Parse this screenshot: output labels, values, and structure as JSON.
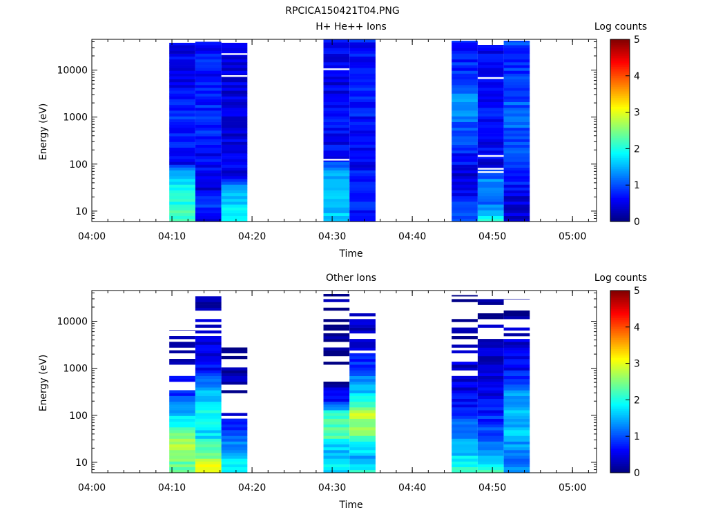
{
  "figure_title": "RPCICA150421T04.PNG",
  "chart_data": [
    {
      "type": "heatmap",
      "title": "H+ He++ Ions",
      "xlabel": "Time",
      "ylabel": "Energy (eV)",
      "colorbar_label": "Log counts",
      "colorbar_ticks": [
        "0",
        "1",
        "2",
        "3",
        "4",
        "5"
      ],
      "colorbar_range": [
        0,
        5
      ],
      "x_ticks": [
        "04:00",
        "04:10",
        "04:20",
        "04:30",
        "04:40",
        "04:50",
        "05:00"
      ],
      "y_ticks": [
        "10",
        "100",
        "1000",
        "10000"
      ],
      "y_scale": "log",
      "ylim": [
        6,
        45000
      ],
      "xlim": [
        "04:00",
        "05:03"
      ],
      "columns": [
        {
          "start": "04:09:40",
          "end": "04:12:55",
          "emin": 6,
          "emax": 38000,
          "profile": [
            [
              6,
              2.2
            ],
            [
              14,
              2.0
            ],
            [
              30,
              1.9
            ],
            [
              60,
              1.6
            ],
            [
              100,
              0.6
            ],
            [
              1000,
              0.8
            ],
            [
              10000,
              0.5
            ],
            [
              38000,
              0.6
            ]
          ],
          "gaps": []
        },
        {
          "start": "04:12:55",
          "end": "04:16:10",
          "emin": 6,
          "emax": 40000,
          "profile": [
            [
              6,
              0.6
            ],
            [
              14,
              0.9
            ],
            [
              30,
              0.5
            ],
            [
              100,
              0.6
            ],
            [
              1000,
              0.8
            ],
            [
              10000,
              0.7
            ],
            [
              40000,
              0.7
            ]
          ],
          "gaps": []
        },
        {
          "start": "04:16:10",
          "end": "04:19:25",
          "emin": 6,
          "emax": 38000,
          "profile": [
            [
              6,
              1.8
            ],
            [
              14,
              1.7
            ],
            [
              30,
              1.5
            ],
            [
              60,
              0.5
            ],
            [
              1000,
              0.5
            ],
            [
              10000,
              0.4
            ],
            [
              38000,
              0.5
            ]
          ],
          "gaps": [
            7500,
            22000
          ]
        },
        {
          "start": "04:28:55",
          "end": "04:32:10",
          "emin": 6,
          "emax": 45000,
          "profile": [
            [
              6,
              1.7
            ],
            [
              14,
              1.6
            ],
            [
              40,
              1.6
            ],
            [
              80,
              1.2
            ],
            [
              150,
              0.6
            ],
            [
              1000,
              0.6
            ],
            [
              10000,
              0.5
            ],
            [
              45000,
              0.6
            ]
          ],
          "gaps": [
            10500,
            125
          ]
        },
        {
          "start": "04:32:10",
          "end": "04:35:25",
          "emin": 6,
          "emax": 45000,
          "profile": [
            [
              6,
              0.5
            ],
            [
              14,
              0.8
            ],
            [
              30,
              0.9
            ],
            [
              100,
              0.6
            ],
            [
              1000,
              0.7
            ],
            [
              10000,
              0.7
            ],
            [
              45000,
              0.7
            ]
          ],
          "gaps": []
        },
        {
          "start": "04:44:55",
          "end": "04:48:10",
          "emin": 6,
          "emax": 42000,
          "profile": [
            [
              6,
              0.9
            ],
            [
              14,
              0.8
            ],
            [
              40,
              0.4
            ],
            [
              100,
              0.6
            ],
            [
              1000,
              1.2
            ],
            [
              2000,
              1.5
            ],
            [
              10000,
              0.8
            ],
            [
              42000,
              0.8
            ]
          ],
          "gaps": []
        },
        {
          "start": "04:48:10",
          "end": "04:51:25",
          "emin": 6,
          "emax": 36000,
          "profile": [
            [
              6,
              2.0
            ],
            [
              14,
              1.2
            ],
            [
              40,
              1.4
            ],
            [
              100,
              0.5
            ],
            [
              1000,
              0.7
            ],
            [
              10000,
              0.5
            ],
            [
              36000,
              0.6
            ]
          ],
          "gaps": [
            6800,
            150,
            80,
            68,
            36000
          ]
        },
        {
          "start": "04:51:25",
          "end": "04:54:40",
          "emin": 6,
          "emax": 42000,
          "profile": [
            [
              6,
              0.4
            ],
            [
              20,
              0.5
            ],
            [
              60,
              0.8
            ],
            [
              300,
              1.0
            ],
            [
              1000,
              1.1
            ],
            [
              10000,
              0.9
            ],
            [
              42000,
              0.9
            ]
          ],
          "gaps": []
        }
      ]
    },
    {
      "type": "heatmap",
      "title": "Other Ions",
      "xlabel": "Time",
      "ylabel": "Energy (eV)",
      "colorbar_label": "Log counts",
      "colorbar_ticks": [
        "0",
        "1",
        "2",
        "3",
        "4",
        "5"
      ],
      "colorbar_range": [
        0,
        5
      ],
      "x_ticks": [
        "04:00",
        "04:10",
        "04:20",
        "04:30",
        "04:40",
        "04:50",
        "05:00"
      ],
      "y_ticks": [
        "10",
        "100",
        "1000",
        "10000"
      ],
      "y_scale": "log",
      "ylim": [
        6,
        45000
      ],
      "xlim": [
        "04:00",
        "05:03"
      ],
      "columns": [
        {
          "start": "04:09:40",
          "end": "04:12:55",
          "emin": 6,
          "emax": 6500,
          "profile": [
            [
              6,
              2.2
            ],
            [
              15,
              2.6
            ],
            [
              30,
              2.7
            ],
            [
              60,
              2.1
            ],
            [
              150,
              1.3
            ],
            [
              400,
              0.6
            ],
            [
              6500,
              0.1
            ]
          ],
          "sparse_above": 300
        },
        {
          "start": "04:12:55",
          "end": "04:16:10",
          "emin": 6,
          "emax": 38000,
          "profile": [
            [
              6,
              3.2
            ],
            [
              15,
              2.4
            ],
            [
              40,
              1.7
            ],
            [
              100,
              1.9
            ],
            [
              300,
              1.5
            ],
            [
              1000,
              0.6
            ],
            [
              38000,
              0.1
            ]
          ],
          "sparse_above": 4000
        },
        {
          "start": "04:16:10",
          "end": "04:19:25",
          "emin": 6,
          "emax": 2800,
          "profile": [
            [
              6,
              1.8
            ],
            [
              15,
              1.6
            ],
            [
              40,
              1.0
            ],
            [
              100,
              0.4
            ],
            [
              2800,
              0.1
            ]
          ],
          "sparse_above": 80
        },
        {
          "start": "04:28:55",
          "end": "04:32:10",
          "emin": 6,
          "emax": 38000,
          "profile": [
            [
              6,
              1.8
            ],
            [
              20,
              1.6
            ],
            [
              40,
              2.4
            ],
            [
              100,
              2.2
            ],
            [
              200,
              0.8
            ],
            [
              500,
              0.2
            ],
            [
              38000,
              0.1
            ]
          ],
          "sparse_above": 500
        },
        {
          "start": "04:32:10",
          "end": "04:35:25",
          "emin": 6,
          "emax": 32000,
          "profile": [
            [
              6,
              2.1
            ],
            [
              12,
              1.4
            ],
            [
              40,
              2.4
            ],
            [
              100,
              2.8
            ],
            [
              200,
              2.0
            ],
            [
              600,
              1.2
            ],
            [
              3000,
              0.5
            ],
            [
              32000,
              0.1
            ]
          ],
          "sparse_above": 2000
        },
        {
          "start": "04:44:55",
          "end": "04:48:10",
          "emin": 6,
          "emax": 36000,
          "profile": [
            [
              6,
              2.3
            ],
            [
              15,
              1.6
            ],
            [
              40,
              1.2
            ],
            [
              100,
              0.9
            ],
            [
              300,
              0.5
            ],
            [
              36000,
              0.1
            ]
          ],
          "sparse_above": 700
        },
        {
          "start": "04:48:10",
          "end": "04:51:25",
          "emin": 6,
          "emax": 32000,
          "profile": [
            [
              6,
              2.2
            ],
            [
              15,
              1.3
            ],
            [
              40,
              1.0
            ],
            [
              100,
              0.8
            ],
            [
              300,
              0.5
            ],
            [
              32000,
              0.1
            ]
          ],
          "sparse_above": 1500
        },
        {
          "start": "04:51:25",
          "end": "04:54:40",
          "emin": 6,
          "emax": 30000,
          "profile": [
            [
              6,
              1.3
            ],
            [
              15,
              1.2
            ],
            [
              40,
              1.6
            ],
            [
              100,
              1.5
            ],
            [
              300,
              1.3
            ],
            [
              1000,
              0.6
            ],
            [
              30000,
              0.1
            ]
          ],
          "sparse_above": 3000
        }
      ]
    }
  ]
}
